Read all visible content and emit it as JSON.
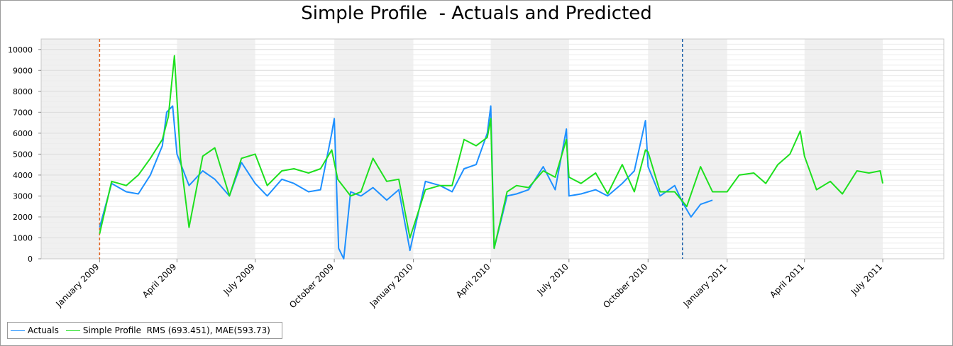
{
  "chart_data": {
    "type": "line",
    "title": "Simple Profile  - Actuals and Predicted",
    "xlabel": "",
    "ylabel": "",
    "ylim": [
      0,
      10500
    ],
    "yticks": [
      0,
      1000,
      2000,
      3000,
      4000,
      5000,
      6000,
      7000,
      8000,
      9000,
      10000
    ],
    "xlim": [
      "2008-10-25",
      "2011-09-10"
    ],
    "xticks": [
      "January 2009",
      "April 2009",
      "July 2009",
      "October 2009",
      "January 2010",
      "April 2010",
      "July 2010",
      "October 2010",
      "January 2011",
      "April 2011",
      "July 2011"
    ],
    "grid": true,
    "markers": [
      {
        "date": "2009-01-01",
        "color": "#e0601b"
      },
      {
        "date": "2010-11-10",
        "color": "#1a5fa8"
      }
    ],
    "legend_position": "bottom-left",
    "series": [
      {
        "name": "Actuals",
        "color": "#1e90ff",
        "points": [
          [
            "2009-01-01",
            1500
          ],
          [
            "2009-01-15",
            3600
          ],
          [
            "2009-02-01",
            3200
          ],
          [
            "2009-02-15",
            3100
          ],
          [
            "2009-03-01",
            4000
          ],
          [
            "2009-03-15",
            5400
          ],
          [
            "2009-03-20",
            7000
          ],
          [
            "2009-03-27",
            7300
          ],
          [
            "2009-04-01",
            5000
          ],
          [
            "2009-04-15",
            3500
          ],
          [
            "2009-05-01",
            4200
          ],
          [
            "2009-05-15",
            3800
          ],
          [
            "2009-06-01",
            3000
          ],
          [
            "2009-06-15",
            4600
          ],
          [
            "2009-07-01",
            3600
          ],
          [
            "2009-07-15",
            3000
          ],
          [
            "2009-08-01",
            3800
          ],
          [
            "2009-08-15",
            3600
          ],
          [
            "2009-09-01",
            3200
          ],
          [
            "2009-09-15",
            3300
          ],
          [
            "2009-09-28",
            6000
          ],
          [
            "2009-10-01",
            6700
          ],
          [
            "2009-10-06",
            500
          ],
          [
            "2009-10-12",
            0
          ],
          [
            "2009-10-20",
            3200
          ],
          [
            "2009-11-01",
            3000
          ],
          [
            "2009-11-15",
            3400
          ],
          [
            "2009-12-01",
            2800
          ],
          [
            "2009-12-15",
            3300
          ],
          [
            "2009-12-28",
            400
          ],
          [
            "2010-01-15",
            3700
          ],
          [
            "2010-02-01",
            3500
          ],
          [
            "2010-02-15",
            3200
          ],
          [
            "2010-03-01",
            4300
          ],
          [
            "2010-03-15",
            4500
          ],
          [
            "2010-03-28",
            6000
          ],
          [
            "2010-04-01",
            7300
          ],
          [
            "2010-04-05",
            500
          ],
          [
            "2010-04-20",
            3000
          ],
          [
            "2010-05-01",
            3100
          ],
          [
            "2010-05-15",
            3300
          ],
          [
            "2010-06-01",
            4400
          ],
          [
            "2010-06-15",
            3300
          ],
          [
            "2010-06-28",
            6200
          ],
          [
            "2010-07-01",
            3000
          ],
          [
            "2010-07-15",
            3100
          ],
          [
            "2010-08-01",
            3300
          ],
          [
            "2010-08-15",
            3000
          ],
          [
            "2010-09-01",
            3600
          ],
          [
            "2010-09-15",
            4200
          ],
          [
            "2010-09-28",
            6600
          ],
          [
            "2010-10-01",
            4400
          ],
          [
            "2010-10-15",
            3000
          ],
          [
            "2010-11-01",
            3500
          ],
          [
            "2010-11-10",
            2700
          ],
          [
            "2010-11-20",
            2000
          ],
          [
            "2010-12-01",
            2600
          ],
          [
            "2010-12-15",
            2800
          ]
        ]
      },
      {
        "name": "Simple Profile  RMS (693.451), MAE(593.73)",
        "color": "#1ee01e",
        "points": [
          [
            "2009-01-01",
            1200
          ],
          [
            "2009-01-15",
            3700
          ],
          [
            "2009-02-01",
            3500
          ],
          [
            "2009-02-15",
            4000
          ],
          [
            "2009-03-01",
            4800
          ],
          [
            "2009-03-15",
            5700
          ],
          [
            "2009-03-22",
            6800
          ],
          [
            "2009-03-29",
            9700
          ],
          [
            "2009-04-05",
            4800
          ],
          [
            "2009-04-15",
            1500
          ],
          [
            "2009-05-01",
            4900
          ],
          [
            "2009-05-15",
            5300
          ],
          [
            "2009-06-01",
            3000
          ],
          [
            "2009-06-15",
            4800
          ],
          [
            "2009-07-01",
            5000
          ],
          [
            "2009-07-15",
            3500
          ],
          [
            "2009-08-01",
            4200
          ],
          [
            "2009-08-15",
            4300
          ],
          [
            "2009-09-01",
            4100
          ],
          [
            "2009-09-15",
            4300
          ],
          [
            "2009-09-28",
            5200
          ],
          [
            "2009-10-05",
            3800
          ],
          [
            "2009-10-20",
            3000
          ],
          [
            "2009-11-01",
            3200
          ],
          [
            "2009-11-15",
            4800
          ],
          [
            "2009-12-01",
            3700
          ],
          [
            "2009-12-15",
            3800
          ],
          [
            "2009-12-28",
            1000
          ],
          [
            "2010-01-15",
            3300
          ],
          [
            "2010-02-01",
            3500
          ],
          [
            "2010-02-15",
            3500
          ],
          [
            "2010-03-01",
            5700
          ],
          [
            "2010-03-15",
            5400
          ],
          [
            "2010-03-28",
            5800
          ],
          [
            "2010-04-01",
            6700
          ],
          [
            "2010-04-05",
            500
          ],
          [
            "2010-04-20",
            3200
          ],
          [
            "2010-05-01",
            3500
          ],
          [
            "2010-05-15",
            3400
          ],
          [
            "2010-06-01",
            4200
          ],
          [
            "2010-06-15",
            3900
          ],
          [
            "2010-06-28",
            5700
          ],
          [
            "2010-07-01",
            3900
          ],
          [
            "2010-07-15",
            3600
          ],
          [
            "2010-08-01",
            4100
          ],
          [
            "2010-08-15",
            3100
          ],
          [
            "2010-09-01",
            4500
          ],
          [
            "2010-09-15",
            3200
          ],
          [
            "2010-09-28",
            5200
          ],
          [
            "2010-10-01",
            5100
          ],
          [
            "2010-10-15",
            3200
          ],
          [
            "2010-11-01",
            3200
          ],
          [
            "2010-11-15",
            2500
          ],
          [
            "2010-12-01",
            4400
          ],
          [
            "2010-12-15",
            3200
          ],
          [
            "2011-01-01",
            3200
          ],
          [
            "2011-01-15",
            4000
          ],
          [
            "2011-02-01",
            4100
          ],
          [
            "2011-02-15",
            3600
          ],
          [
            "2011-03-01",
            4500
          ],
          [
            "2011-03-15",
            5000
          ],
          [
            "2011-03-27",
            6100
          ],
          [
            "2011-04-01",
            4900
          ],
          [
            "2011-04-15",
            3300
          ],
          [
            "2011-05-01",
            3700
          ],
          [
            "2011-05-15",
            3100
          ],
          [
            "2011-06-01",
            4200
          ],
          [
            "2011-06-15",
            4100
          ],
          [
            "2011-06-28",
            4200
          ],
          [
            "2011-07-01",
            3600
          ]
        ]
      }
    ]
  }
}
